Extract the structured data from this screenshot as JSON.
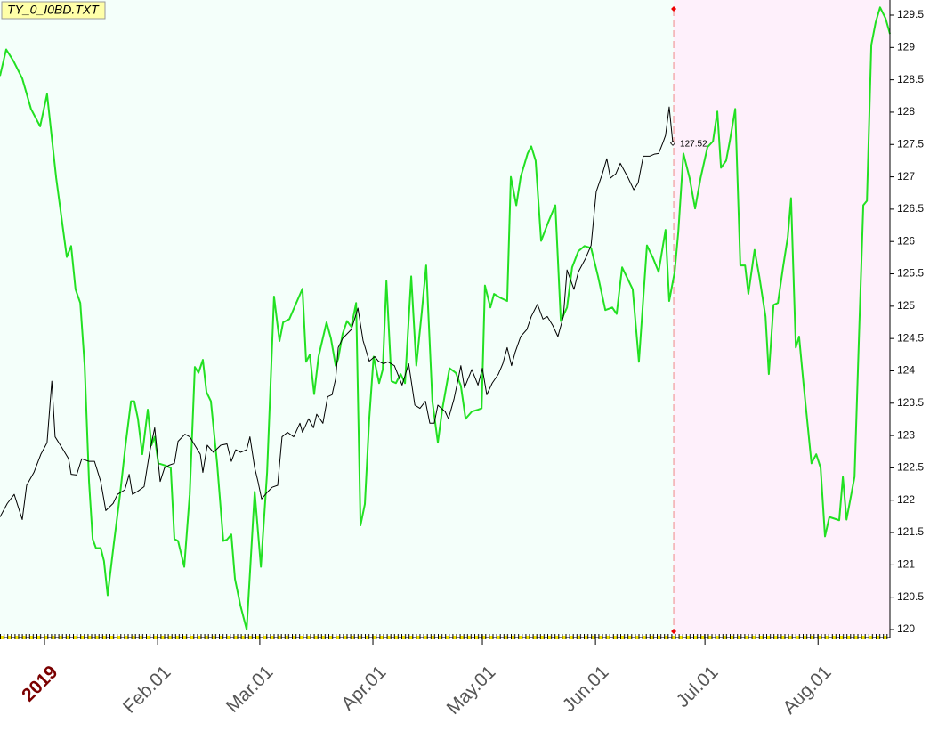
{
  "chart_data": {
    "type": "line",
    "title": "TY_0_I0BD.TXT",
    "xlim": [
      -12.2,
      231.7
    ],
    "ylim": [
      120,
      129.5
    ],
    "xticks": [
      {
        "value": 0,
        "label": "2019"
      },
      {
        "value": 31,
        "label": "Feb.01"
      },
      {
        "value": 59,
        "label": "Mar.01"
      },
      {
        "value": 90,
        "label": "Apr.01"
      },
      {
        "value": 120,
        "label": "May.01"
      },
      {
        "value": 151,
        "label": "Jun.01"
      },
      {
        "value": 181,
        "label": "Jul.01"
      },
      {
        "value": 212,
        "label": "Aug.01"
      }
    ],
    "yticks": [
      120,
      120.5,
      121,
      121.5,
      122,
      122.5,
      123,
      123.5,
      124,
      124.5,
      125,
      125.5,
      126,
      126.5,
      127,
      127.5,
      128,
      128.5,
      129,
      129.5
    ],
    "series": [
      {
        "color": "#000000",
        "x": [
          -12.2,
          -10.2,
          -8.3,
          -6.1,
          -4.9,
          -2.9,
          -1.0,
          0.7,
          2.0,
          2.9,
          4.9,
          6.6,
          7.3,
          8.8,
          10.2,
          12.2,
          13.7,
          15.4,
          16.8,
          18.8,
          20.0,
          22.0,
          23.2,
          24.1,
          25.6,
          27.3,
          28.8,
          30.2,
          31.7,
          32.9,
          34.1,
          35.6,
          36.6,
          38.5,
          39.8,
          41.5,
          42.7,
          43.4,
          44.6,
          46.3,
          48.3,
          50.0,
          51.2,
          52.4,
          53.7,
          55.4,
          56.3,
          57.6,
          58.5,
          59.5,
          61.0,
          62.4,
          63.9,
          65.1,
          66.6,
          68.3,
          70.0,
          70.7,
          72.4,
          73.7,
          74.6,
          76.3,
          77.6,
          78.8,
          79.8,
          80.5,
          81.7,
          84.1,
          85.9,
          87.3,
          89.0,
          90.5,
          91.5,
          92.9,
          94.1,
          95.9,
          96.8,
          98.0,
          99.8,
          101.5,
          102.9,
          104.4,
          105.6,
          106.8,
          107.8,
          109.8,
          110.7,
          112.2,
          113.4,
          114.1,
          115.1,
          117.1,
          118.8,
          120.0,
          121.2,
          122.7,
          124.4,
          125.6,
          126.8,
          128.0,
          129.0,
          130.5,
          132.2,
          133.4,
          135.1,
          136.6,
          137.8,
          139.3,
          140.7,
          142.2,
          143.2,
          145.1,
          146.3,
          148.3,
          149.8,
          151.2,
          152.9,
          154.1,
          155.1,
          156.6,
          157.8,
          159.8,
          161.5,
          162.7,
          164.1,
          165.9,
          167.1,
          168.3,
          169.5,
          170.2,
          171.2,
          172.2
        ],
        "values": [
          121.74,
          121.95,
          122.09,
          121.7,
          122.23,
          122.43,
          122.71,
          122.89,
          123.84,
          122.98,
          122.8,
          122.64,
          122.4,
          122.39,
          122.64,
          122.6,
          122.6,
          122.29,
          121.84,
          121.95,
          122.09,
          122.16,
          122.4,
          122.09,
          122.14,
          122.21,
          122.74,
          123.12,
          122.29,
          122.5,
          122.54,
          122.57,
          122.91,
          123.02,
          122.98,
          122.82,
          122.71,
          122.43,
          122.85,
          122.74,
          122.85,
          122.87,
          122.6,
          122.78,
          122.74,
          122.78,
          122.98,
          122.5,
          122.29,
          122.02,
          122.12,
          122.2,
          122.23,
          122.98,
          123.05,
          122.98,
          123.19,
          123.05,
          123.26,
          123.12,
          123.33,
          123.19,
          123.6,
          123.63,
          123.88,
          124.36,
          124.5,
          124.64,
          124.97,
          124.47,
          124.15,
          124.22,
          124.15,
          124.11,
          124.14,
          124.08,
          123.95,
          123.78,
          124.11,
          123.47,
          123.42,
          123.53,
          123.19,
          123.19,
          123.47,
          123.37,
          123.26,
          123.56,
          123.88,
          124.08,
          123.74,
          124.02,
          123.78,
          124.04,
          123.63,
          123.81,
          123.95,
          124.11,
          124.36,
          124.08,
          124.29,
          124.53,
          124.64,
          124.84,
          125.03,
          124.8,
          124.84,
          124.7,
          124.53,
          124.84,
          125.56,
          125.26,
          125.53,
          125.74,
          125.94,
          126.77,
          127.05,
          127.28,
          126.98,
          127.05,
          127.21,
          127.0,
          126.8,
          126.91,
          127.32,
          127.32,
          127.35,
          127.36,
          127.53,
          127.64,
          128.08,
          127.52
        ]
      },
      {
        "color": "#22e022",
        "x": [
          -12.2,
          -10.5,
          -8.5,
          -6.1,
          -3.7,
          -1.2,
          0.7,
          3.2,
          6.1,
          7.3,
          8.5,
          9.8,
          11.0,
          12.2,
          13.2,
          14.1,
          15.4,
          16.3,
          17.3,
          19.0,
          20.7,
          22.2,
          23.7,
          24.6,
          25.6,
          26.8,
          28.3,
          29.3,
          30.2,
          31.2,
          32.9,
          34.6,
          35.6,
          36.6,
          38.3,
          39.8,
          41.2,
          42.2,
          43.4,
          44.4,
          45.6,
          47.3,
          49.0,
          50.0,
          51.2,
          52.2,
          53.7,
          55.4,
          57.6,
          59.3,
          61.0,
          62.9,
          64.4,
          65.4,
          67.1,
          69.0,
          70.7,
          71.7,
          72.7,
          73.9,
          75.1,
          77.3,
          78.5,
          79.8,
          80.5,
          81.7,
          82.9,
          84.1,
          85.4,
          86.6,
          87.8,
          89.0,
          90.2,
          91.7,
          92.7,
          93.7,
          95.1,
          96.3,
          97.6,
          98.8,
          100.5,
          101.9,
          103.4,
          104.6,
          106.3,
          107.8,
          109.0,
          111.0,
          112.7,
          114.1,
          115.4,
          117.1,
          118.8,
          119.8,
          120.7,
          122.2,
          123.2,
          124.9,
          126.8,
          127.8,
          129.3,
          130.5,
          132.4,
          133.4,
          134.6,
          136.1,
          138.0,
          140.0,
          141.5,
          143.2,
          144.6,
          146.3,
          148.0,
          149.8,
          151.7,
          153.7,
          155.6,
          156.8,
          158.3,
          159.5,
          161.2,
          162.9,
          165.1,
          166.8,
          168.3,
          170.2,
          171.2,
          172.7,
          173.7,
          175.1,
          176.8,
          178.3,
          179.8,
          181.7,
          183.2,
          184.4,
          185.4,
          186.8,
          187.8,
          189.3,
          190.7,
          192.0,
          192.9,
          194.6,
          195.9,
          197.6,
          198.5,
          199.8,
          201.0,
          202.4,
          203.7,
          204.6,
          205.9,
          206.8,
          208.0,
          210.2,
          211.5,
          212.7,
          213.9,
          215.1,
          217.8,
          218.8,
          219.8,
          222.0,
          223.2,
          224.4,
          225.4,
          226.6,
          227.8,
          229.0,
          230.5,
          231.7
        ],
        "values": [
          128.56,
          128.97,
          128.79,
          128.52,
          128.05,
          127.78,
          128.28,
          126.98,
          125.76,
          125.93,
          125.26,
          125.05,
          124.08,
          122.29,
          121.4,
          121.26,
          121.26,
          121.06,
          120.53,
          121.33,
          122.09,
          122.85,
          123.53,
          123.53,
          123.26,
          122.71,
          123.4,
          122.85,
          122.98,
          122.57,
          122.54,
          122.5,
          121.4,
          121.37,
          120.97,
          122.09,
          124.06,
          123.97,
          124.17,
          123.67,
          123.53,
          122.57,
          121.37,
          121.39,
          121.47,
          120.78,
          120.37,
          120.0,
          122.13,
          120.97,
          122.43,
          125.15,
          124.46,
          124.75,
          124.8,
          125.05,
          125.27,
          124.14,
          124.25,
          123.64,
          124.22,
          124.75,
          124.5,
          124.08,
          124.19,
          124.57,
          124.77,
          124.68,
          125.05,
          121.61,
          121.94,
          123.26,
          124.22,
          123.81,
          124.02,
          125.39,
          123.84,
          123.81,
          123.95,
          123.81,
          125.46,
          124.08,
          124.91,
          125.63,
          123.53,
          122.89,
          123.4,
          124.04,
          123.97,
          123.77,
          123.26,
          123.37,
          123.4,
          123.42,
          125.32,
          124.98,
          125.19,
          125.13,
          125.08,
          127.0,
          126.56,
          127.0,
          127.36,
          127.47,
          127.25,
          126.01,
          126.29,
          126.56,
          124.77,
          124.98,
          125.6,
          125.85,
          125.93,
          125.9,
          125.46,
          124.94,
          124.98,
          124.88,
          125.6,
          125.46,
          125.26,
          124.14,
          125.94,
          125.74,
          125.53,
          126.18,
          125.08,
          125.53,
          126.15,
          127.36,
          126.98,
          126.51,
          126.98,
          127.46,
          127.55,
          128.01,
          127.14,
          127.25,
          127.55,
          128.05,
          125.63,
          125.63,
          125.19,
          125.87,
          125.46,
          124.84,
          123.95,
          125.02,
          125.05,
          125.6,
          126.07,
          126.67,
          124.36,
          124.53,
          123.81,
          122.57,
          122.71,
          122.5,
          121.44,
          121.74,
          121.69,
          122.36,
          121.7,
          122.36,
          124.5,
          126.56,
          126.63,
          129.04,
          129.39,
          129.62,
          129.45,
          129.21
        ]
      }
    ]
  }
}
